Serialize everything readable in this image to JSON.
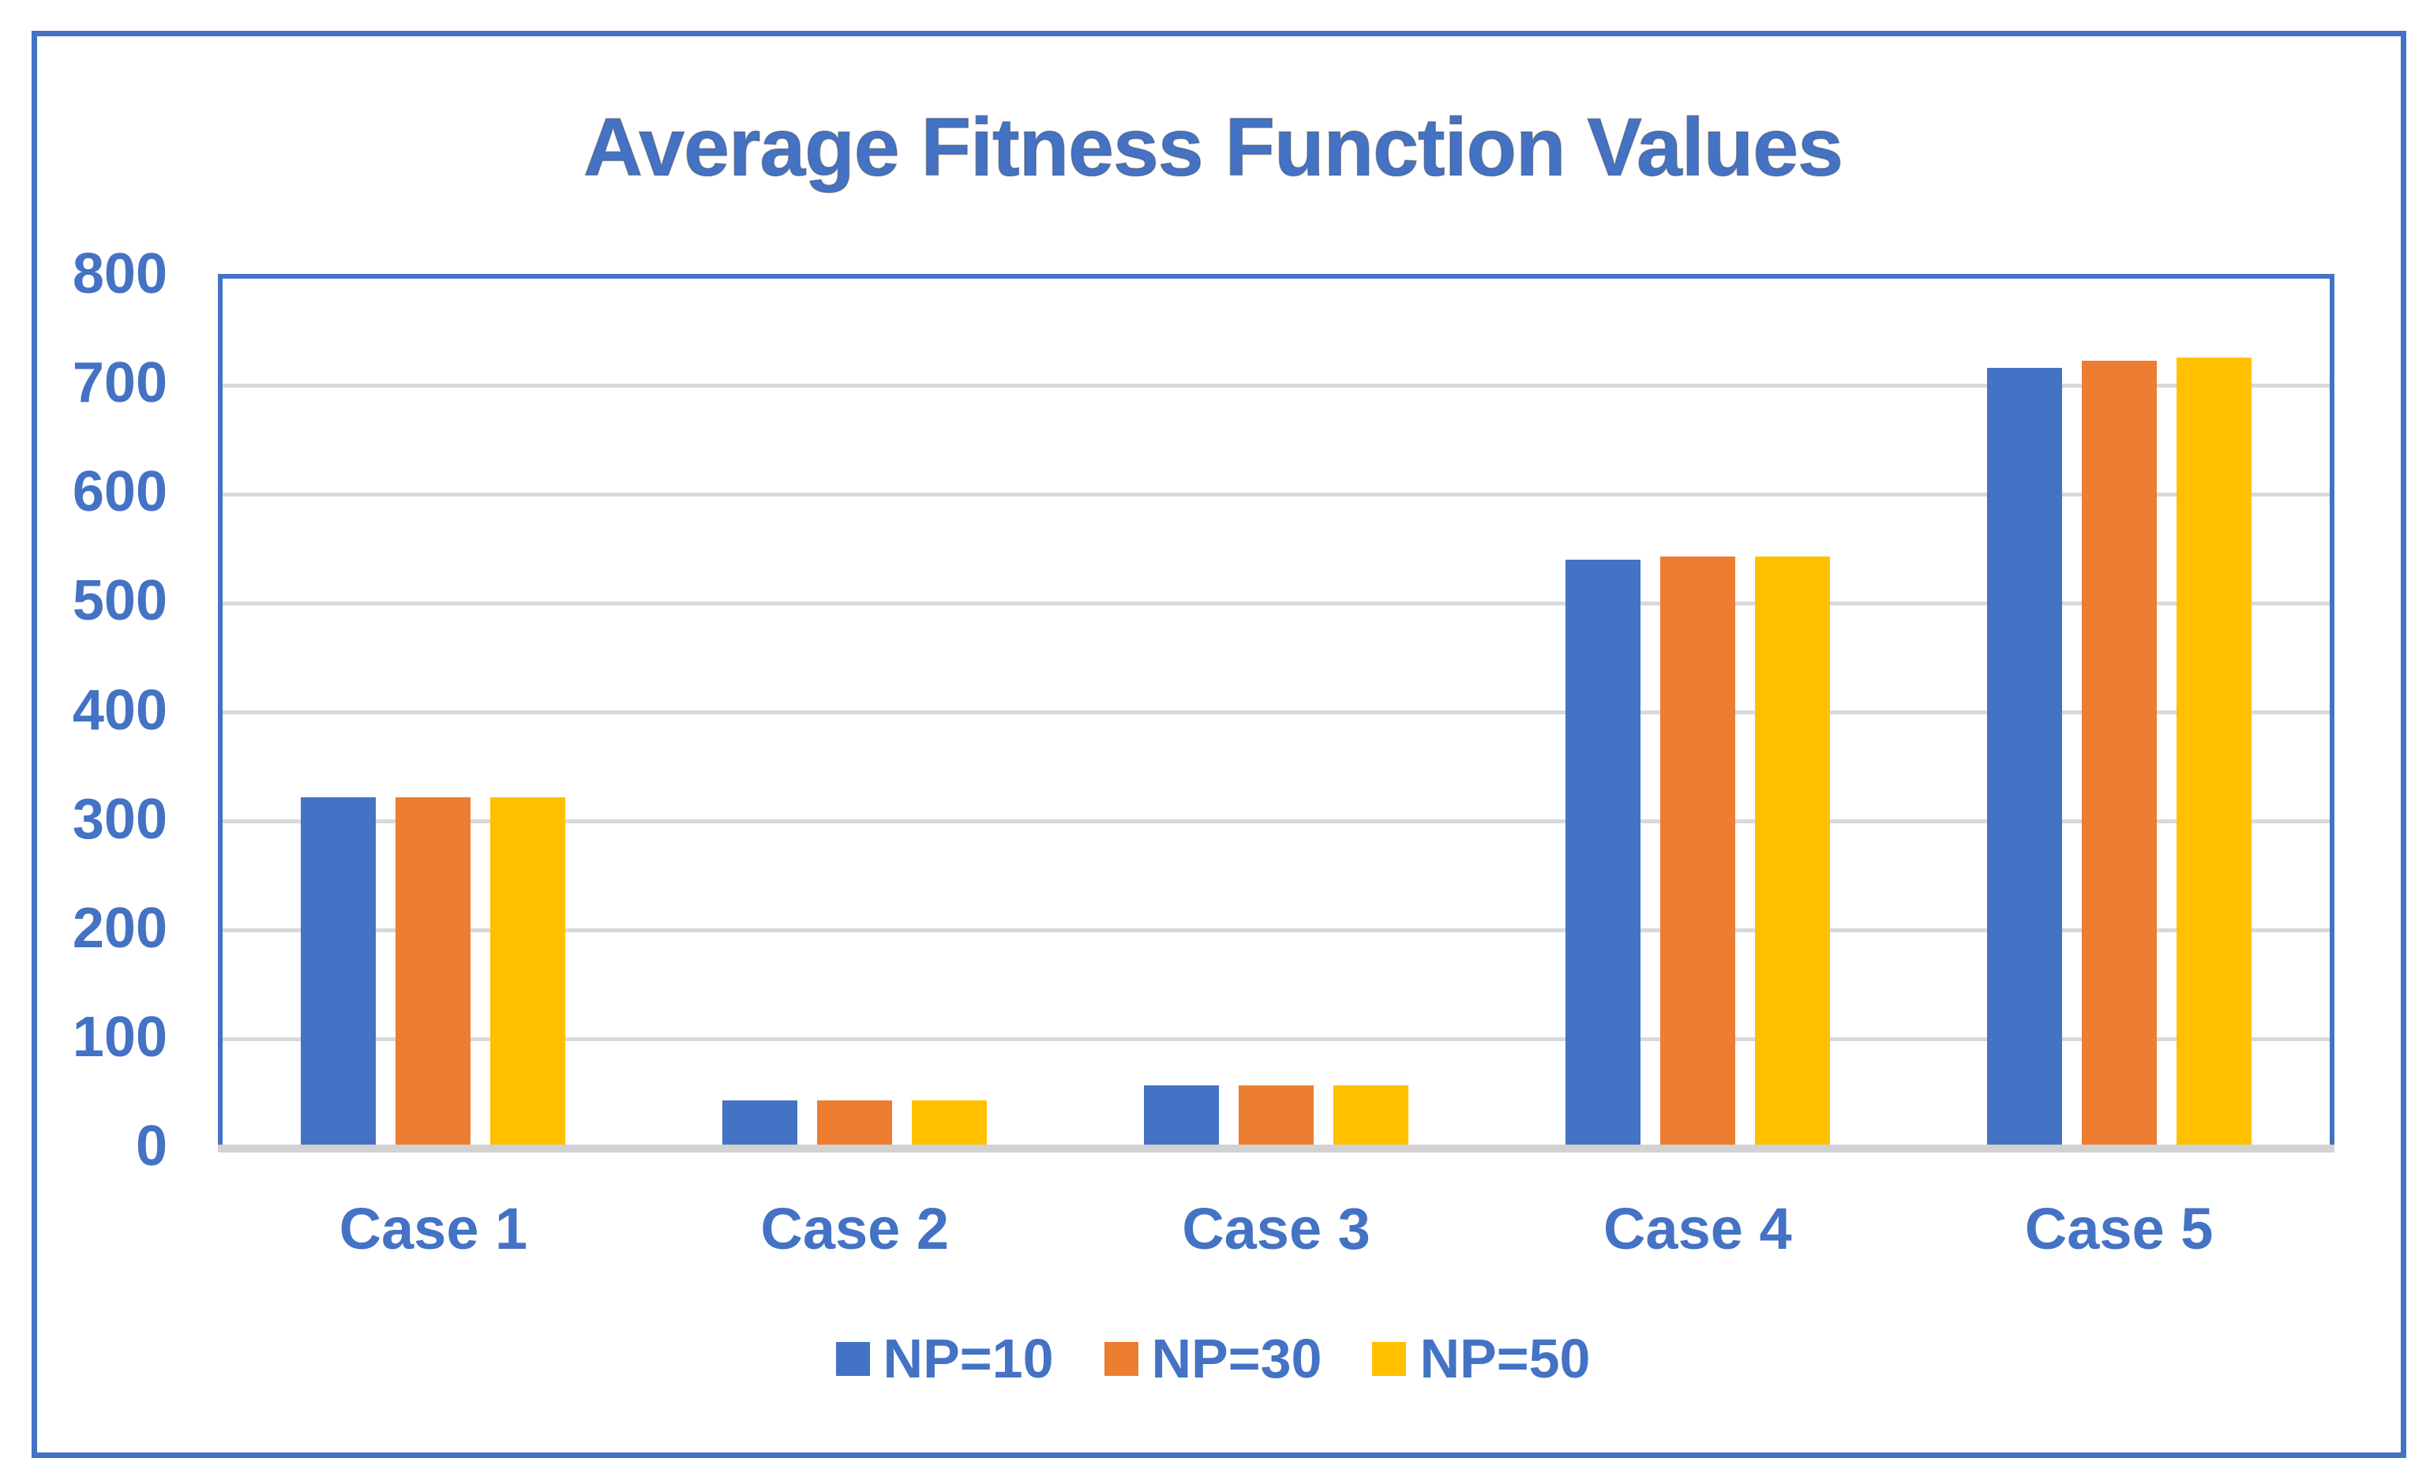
{
  "chart_data": {
    "type": "bar",
    "title": "Average Fitness Function Values",
    "categories": [
      "Case 1",
      "Case 2",
      "Case 3",
      "Case 4",
      "Case 5"
    ],
    "series": [
      {
        "name": "NP=10",
        "color": "#4472C4",
        "values": [
          320,
          42,
          56,
          538,
          714
        ]
      },
      {
        "name": "NP=30",
        "color": "#ED7D31",
        "values": [
          320,
          42,
          56,
          541,
          720
        ]
      },
      {
        "name": "NP=50",
        "color": "#FFC000",
        "values": [
          320,
          42,
          56,
          541,
          723
        ]
      }
    ],
    "xlabel": "",
    "ylabel": "",
    "ylim": [
      0,
      800
    ],
    "ytick_interval": 100,
    "ytick_labels": [
      "0",
      "100",
      "200",
      "300",
      "400",
      "500",
      "600",
      "700",
      "800"
    ],
    "grid": "horizontal",
    "legend_position": "bottom"
  },
  "colors": {
    "accent": "#4472C4",
    "gridline": "#D9D9D9",
    "axis_line": "#D2D2D2",
    "background": "#FFFFFF"
  }
}
